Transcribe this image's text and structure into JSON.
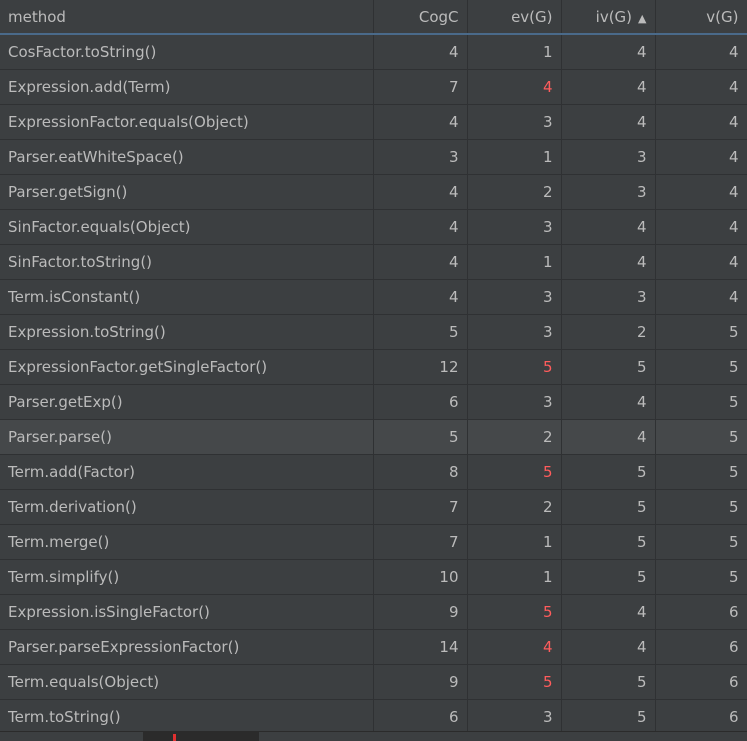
{
  "columns": [
    "method",
    "CogC",
    "ev(G)",
    "iv(G)",
    "v(G)"
  ],
  "sorted_column": "iv(G)",
  "sort_direction": "ascending",
  "colors": {
    "background": "#3c3f41",
    "text": "#bbbbbb",
    "highlight": "#ff5c5c"
  },
  "rows": [
    {
      "method": "CosFactor.toString()",
      "cogc": "4",
      "ev": "1",
      "iv": "4",
      "v": "4",
      "ev_red": false
    },
    {
      "method": "Expression.add(Term)",
      "cogc": "7",
      "ev": "4",
      "iv": "4",
      "v": "4",
      "ev_red": true
    },
    {
      "method": "ExpressionFactor.equals(Object)",
      "cogc": "4",
      "ev": "3",
      "iv": "4",
      "v": "4",
      "ev_red": false
    },
    {
      "method": "Parser.eatWhiteSpace()",
      "cogc": "3",
      "ev": "1",
      "iv": "3",
      "v": "4",
      "ev_red": false
    },
    {
      "method": "Parser.getSign()",
      "cogc": "4",
      "ev": "2",
      "iv": "3",
      "v": "4",
      "ev_red": false
    },
    {
      "method": "SinFactor.equals(Object)",
      "cogc": "4",
      "ev": "3",
      "iv": "4",
      "v": "4",
      "ev_red": false
    },
    {
      "method": "SinFactor.toString()",
      "cogc": "4",
      "ev": "1",
      "iv": "4",
      "v": "4",
      "ev_red": false
    },
    {
      "method": "Term.isConstant()",
      "cogc": "4",
      "ev": "3",
      "iv": "3",
      "v": "4",
      "ev_red": false
    },
    {
      "method": "Expression.toString()",
      "cogc": "5",
      "ev": "3",
      "iv": "2",
      "v": "5",
      "ev_red": false
    },
    {
      "method": "ExpressionFactor.getSingleFactor()",
      "cogc": "12",
      "ev": "5",
      "iv": "5",
      "v": "5",
      "ev_red": true
    },
    {
      "method": "Parser.getExp()",
      "cogc": "6",
      "ev": "3",
      "iv": "4",
      "v": "5",
      "ev_red": false
    },
    {
      "method": "Parser.parse()",
      "cogc": "5",
      "ev": "2",
      "iv": "4",
      "v": "5",
      "ev_red": false,
      "selected": true
    },
    {
      "method": "Term.add(Factor)",
      "cogc": "8",
      "ev": "5",
      "iv": "5",
      "v": "5",
      "ev_red": true
    },
    {
      "method": "Term.derivation()",
      "cogc": "7",
      "ev": "2",
      "iv": "5",
      "v": "5",
      "ev_red": false
    },
    {
      "method": "Term.merge()",
      "cogc": "7",
      "ev": "1",
      "iv": "5",
      "v": "5",
      "ev_red": false
    },
    {
      "method": "Term.simplify()",
      "cogc": "10",
      "ev": "1",
      "iv": "5",
      "v": "5",
      "ev_red": false
    },
    {
      "method": "Expression.isSingleFactor()",
      "cogc": "9",
      "ev": "5",
      "iv": "4",
      "v": "6",
      "ev_red": true
    },
    {
      "method": "Parser.parseExpressionFactor()",
      "cogc": "14",
      "ev": "4",
      "iv": "4",
      "v": "6",
      "ev_red": true
    },
    {
      "method": "Term.equals(Object)",
      "cogc": "9",
      "ev": "5",
      "iv": "5",
      "v": "6",
      "ev_red": true
    },
    {
      "method": "Term.toString()",
      "cogc": "6",
      "ev": "3",
      "iv": "5",
      "v": "6",
      "ev_red": false
    }
  ]
}
